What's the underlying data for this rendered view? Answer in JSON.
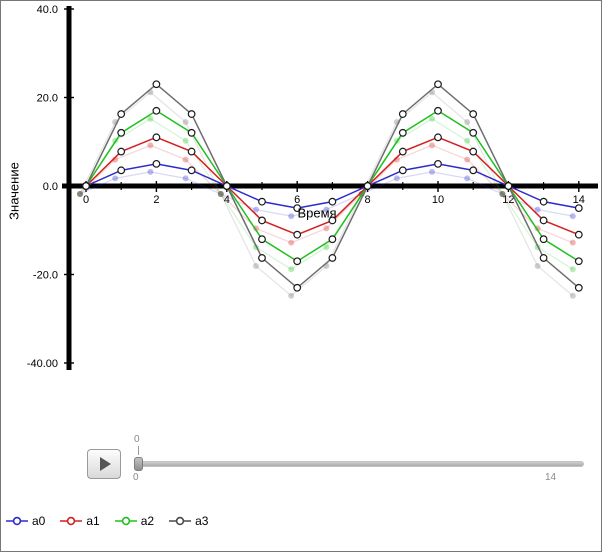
{
  "chart_data": {
    "type": "line",
    "x": [
      0,
      1,
      2,
      3,
      4,
      5,
      6,
      7,
      8,
      9,
      10,
      11,
      12,
      13,
      14
    ],
    "series": [
      {
        "name": "a0",
        "color": "#2b2bd0",
        "values": [
          0,
          3.54,
          5,
          3.54,
          0,
          -3.54,
          -5,
          -3.54,
          0,
          3.54,
          5,
          3.54,
          0,
          -3.54,
          -5
        ]
      },
      {
        "name": "a1",
        "color": "#d42020",
        "values": [
          0,
          7.78,
          11,
          7.78,
          0,
          -7.78,
          -11,
          -7.78,
          0,
          7.78,
          11,
          7.78,
          0,
          -7.78,
          -11
        ]
      },
      {
        "name": "a2",
        "color": "#20c020",
        "values": [
          0,
          12.02,
          17,
          12.02,
          0,
          -12.02,
          -17,
          -12.02,
          0,
          12.02,
          17,
          12.02,
          0,
          -12.02,
          -17
        ]
      },
      {
        "name": "a3",
        "color": "#6e6e6e",
        "values": [
          0,
          16.26,
          23,
          16.26,
          0,
          -16.26,
          -23,
          -16.26,
          0,
          16.26,
          23,
          16.26,
          0,
          -16.26,
          -23
        ]
      }
    ],
    "xlabel": "Время",
    "ylabel": "Значение",
    "xlim": [
      -0.65,
      14.5
    ],
    "ylim": [
      -41,
      41
    ],
    "x_ticks": [
      0,
      2,
      4,
      6,
      8,
      10,
      12,
      14
    ],
    "x_ticks_minor": [
      1,
      3,
      5,
      7,
      9,
      11,
      13
    ],
    "y_ticks": [
      {
        "label": "40.0",
        "value": 40
      },
      {
        "label": "20.0",
        "value": 20
      },
      {
        "label": "0.0",
        "value": 0
      },
      {
        "label": "-20.0",
        "value": -20
      },
      {
        "label": "-40.00",
        "value": -40
      }
    ],
    "grid": false,
    "legend_position": "bottom-left",
    "marker": "open-circle",
    "trail": "faded ghost points offset from current points"
  },
  "controls": {
    "play_icon": "play-triangle",
    "slider": {
      "value_label": "0",
      "min_label": "0",
      "max_label": "14"
    }
  },
  "legend": {
    "items": [
      {
        "label": "a0",
        "color": "#2b2bd0"
      },
      {
        "label": "a1",
        "color": "#d42020"
      },
      {
        "label": "a2",
        "color": "#20c020"
      },
      {
        "label": "a3",
        "color": "#4a4a4a"
      }
    ]
  }
}
